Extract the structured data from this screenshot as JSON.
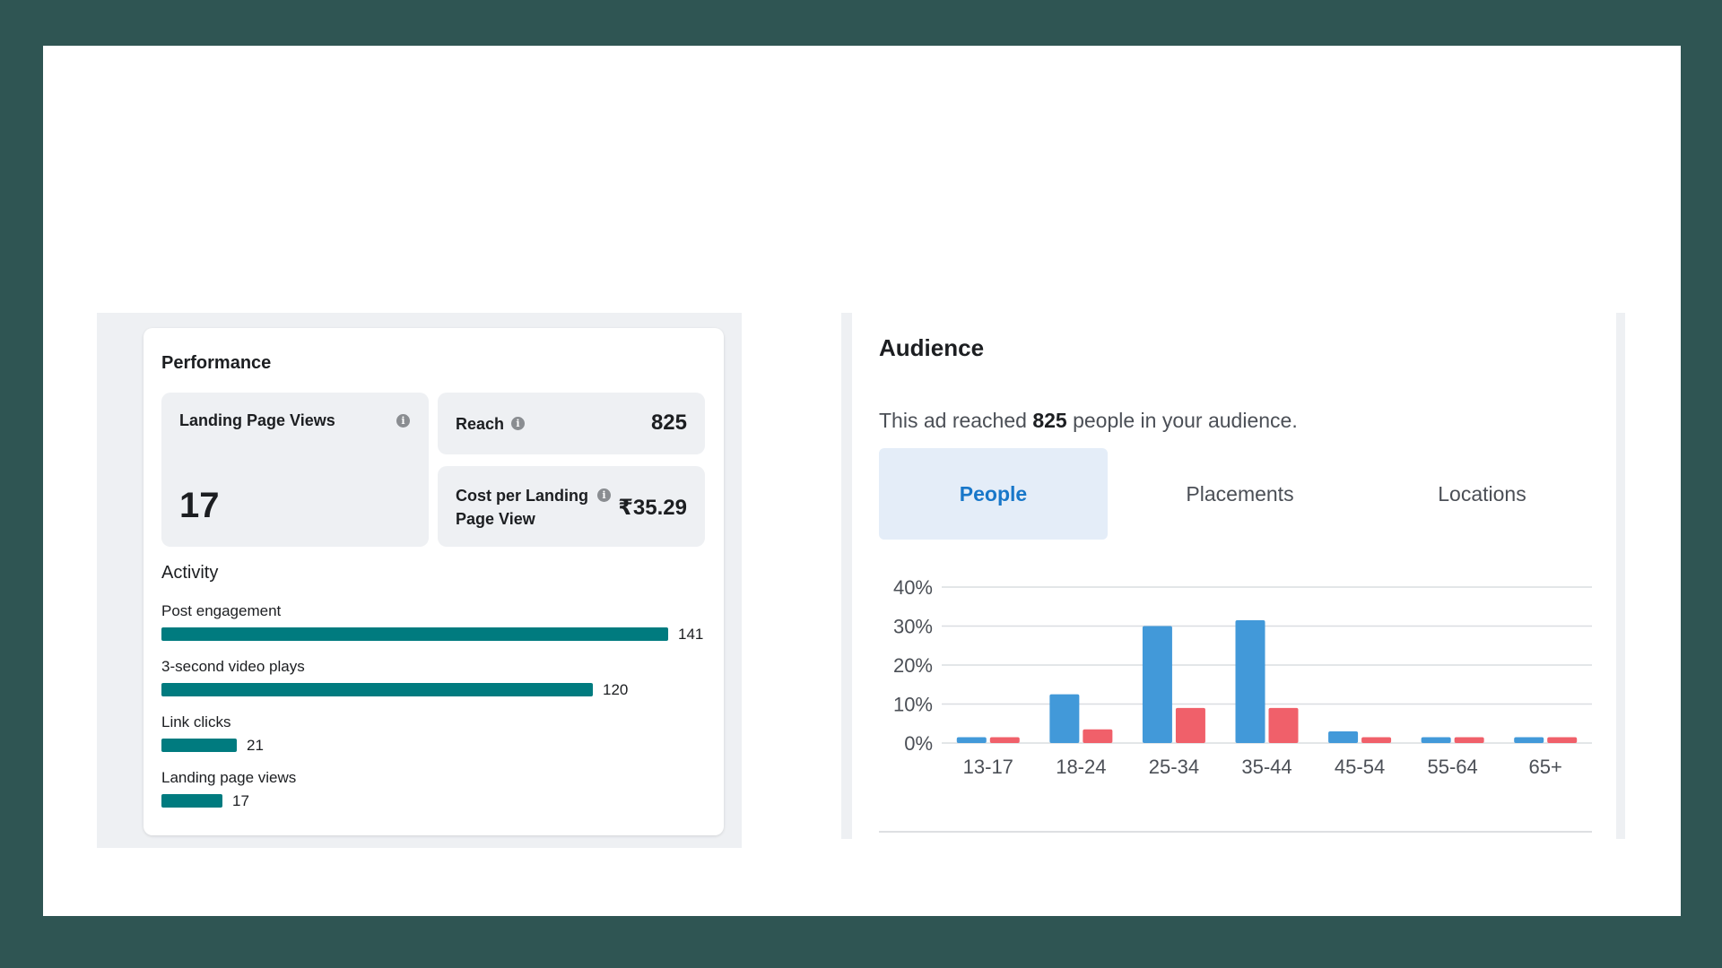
{
  "performance": {
    "title": "Performance",
    "landing_page_views": {
      "label": "Landing Page Views",
      "value": "17"
    },
    "reach": {
      "label": "Reach",
      "value": "825"
    },
    "cost_per_lpv": {
      "label_line1": "Cost per Landing",
      "label_line2": "Page View",
      "value": "₹35.29"
    },
    "activity_title": "Activity",
    "activity": [
      {
        "label": "Post engagement",
        "count": "141",
        "value": 141
      },
      {
        "label": "3-second video plays",
        "count": "120",
        "value": 120
      },
      {
        "label": "Link clicks",
        "count": "21",
        "value": 21
      },
      {
        "label": "Landing page views",
        "count": "17",
        "value": 17
      }
    ],
    "bar_color": "#007b7f",
    "info_icon": "info-icon"
  },
  "audience": {
    "title": "Audience",
    "desc_prefix": "This ad reached ",
    "desc_count": "825",
    "desc_suffix": " people in your audience.",
    "tabs": [
      {
        "label": "People",
        "active": true
      },
      {
        "label": "Placements",
        "active": false
      },
      {
        "label": "Locations",
        "active": false
      }
    ]
  },
  "chart_data": {
    "type": "bar",
    "categories": [
      "13-17",
      "18-24",
      "25-34",
      "35-44",
      "45-54",
      "55-64",
      "65+"
    ],
    "series": [
      {
        "values": [
          1.5,
          12.5,
          30.0,
          31.5,
          3.0,
          1.5,
          1.5
        ],
        "color": "#4299d9"
      },
      {
        "values": [
          1.5,
          3.5,
          9.0,
          9.0,
          1.5,
          1.5,
          1.5
        ],
        "color": "#f0606a"
      }
    ],
    "ylim": [
      0,
      40
    ],
    "yticks": [
      "0%",
      "10%",
      "20%",
      "30%",
      "40%"
    ],
    "grid": true
  }
}
